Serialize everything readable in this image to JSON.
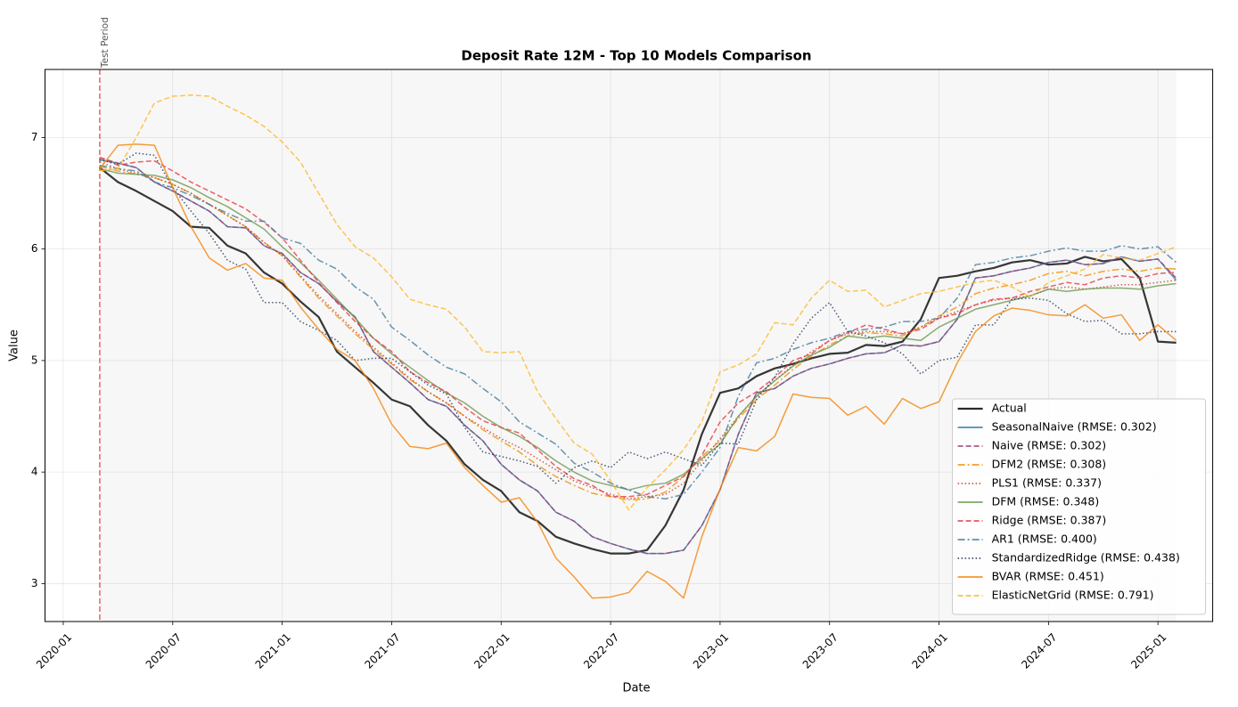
{
  "chart_data": {
    "type": "line",
    "title": "Deposit Rate 12M - Top 10 Models Comparison",
    "x_label": "Date",
    "y_label": "Value",
    "annotation": "Test Period",
    "vline": "2020-03",
    "shaded_span": [
      "2020-03",
      "2025-02"
    ],
    "legend": "lower right",
    "grid": true,
    "xlim": [
      "2019-12",
      "2025-04"
    ],
    "xticks": [
      "2020-01",
      "2020-07",
      "2021-01",
      "2021-07",
      "2022-01",
      "2022-07",
      "2023-01",
      "2023-07",
      "2024-01",
      "2024-07",
      "2025-01"
    ],
    "ylim": [
      2.66,
      7.61
    ],
    "yticks": [
      3,
      4,
      5,
      6,
      7
    ],
    "x": [
      "2020-03",
      "2020-04",
      "2020-05",
      "2020-06",
      "2020-07",
      "2020-08",
      "2020-09",
      "2020-10",
      "2020-11",
      "2020-12",
      "2021-01",
      "2021-02",
      "2021-03",
      "2021-04",
      "2021-05",
      "2021-06",
      "2021-07",
      "2021-08",
      "2021-09",
      "2021-10",
      "2021-11",
      "2021-12",
      "2022-01",
      "2022-02",
      "2022-03",
      "2022-04",
      "2022-05",
      "2022-06",
      "2022-07",
      "2022-08",
      "2022-09",
      "2022-10",
      "2022-11",
      "2022-12",
      "2023-01",
      "2023-02",
      "2023-03",
      "2023-04",
      "2023-05",
      "2023-06",
      "2023-07",
      "2023-08",
      "2023-09",
      "2023-10",
      "2023-11",
      "2023-12",
      "2024-01",
      "2024-02",
      "2024-03",
      "2024-04",
      "2024-05",
      "2024-06",
      "2024-07",
      "2024-08",
      "2024-09",
      "2024-10",
      "2024-11",
      "2024-12",
      "2025-01",
      "2025-02"
    ],
    "series": [
      {
        "name": "Actual",
        "color": "#2b2b2b",
        "style": "solid",
        "linewidth": 2.2,
        "values": [
          6.73,
          6.6,
          6.52,
          6.43,
          6.34,
          6.2,
          6.19,
          6.03,
          5.96,
          5.79,
          5.69,
          5.53,
          5.39,
          5.08,
          4.94,
          4.8,
          4.65,
          4.59,
          4.42,
          4.28,
          4.07,
          3.93,
          3.83,
          3.64,
          3.56,
          3.42,
          3.36,
          3.31,
          3.27,
          3.27,
          3.3,
          3.52,
          3.84,
          4.34,
          4.71,
          4.75,
          4.86,
          4.93,
          4.97,
          5.02,
          5.06,
          5.07,
          5.14,
          5.13,
          5.17,
          5.37,
          5.74,
          5.76,
          5.8,
          5.83,
          5.88,
          5.9,
          5.86,
          5.87,
          5.93,
          5.89,
          5.91,
          5.74,
          5.17,
          5.16
        ]
      },
      {
        "name": "SeasonalNaive (RMSE: 0.302)",
        "color": "#2e7ca8",
        "style": "solid",
        "values": [
          6.8,
          6.77,
          6.73,
          6.6,
          6.52,
          6.43,
          6.34,
          6.2,
          6.19,
          6.03,
          5.96,
          5.79,
          5.69,
          5.53,
          5.39,
          5.08,
          4.94,
          4.8,
          4.65,
          4.59,
          4.42,
          4.28,
          4.07,
          3.93,
          3.83,
          3.64,
          3.56,
          3.42,
          3.36,
          3.31,
          3.27,
          3.27,
          3.3,
          3.52,
          3.84,
          4.34,
          4.71,
          4.75,
          4.86,
          4.93,
          4.97,
          5.02,
          5.06,
          5.07,
          5.14,
          5.13,
          5.17,
          5.37,
          5.74,
          5.76,
          5.8,
          5.83,
          5.88,
          5.9,
          5.86,
          5.87,
          5.93,
          5.89,
          5.91,
          5.72
        ]
      },
      {
        "name": "Naive (RMSE: 0.302)",
        "color": "#a23b72",
        "style": "dashed",
        "values": [
          6.82,
          6.77,
          6.73,
          6.6,
          6.52,
          6.43,
          6.34,
          6.2,
          6.19,
          6.03,
          5.96,
          5.79,
          5.69,
          5.53,
          5.39,
          5.08,
          4.94,
          4.8,
          4.65,
          4.59,
          4.42,
          4.28,
          4.07,
          3.93,
          3.83,
          3.64,
          3.56,
          3.42,
          3.36,
          3.31,
          3.27,
          3.27,
          3.3,
          3.52,
          3.84,
          4.34,
          4.71,
          4.75,
          4.86,
          4.93,
          4.97,
          5.02,
          5.06,
          5.07,
          5.14,
          5.13,
          5.17,
          5.37,
          5.74,
          5.76,
          5.8,
          5.83,
          5.88,
          5.9,
          5.86,
          5.87,
          5.93,
          5.89,
          5.91,
          5.74
        ]
      },
      {
        "name": "DFM2 (RMSE: 0.308)",
        "color": "#f18f01",
        "style": "dashdot",
        "values": [
          6.74,
          6.7,
          6.67,
          6.64,
          6.58,
          6.5,
          6.4,
          6.3,
          6.2,
          6.06,
          5.94,
          5.75,
          5.56,
          5.4,
          5.24,
          5.1,
          4.97,
          4.83,
          4.72,
          4.62,
          4.5,
          4.38,
          4.28,
          4.18,
          4.06,
          3.96,
          3.88,
          3.81,
          3.78,
          3.75,
          3.76,
          3.82,
          3.96,
          4.14,
          4.28,
          4.48,
          4.65,
          4.78,
          4.92,
          5.04,
          5.14,
          5.22,
          5.25,
          5.24,
          5.22,
          5.3,
          5.4,
          5.48,
          5.6,
          5.65,
          5.68,
          5.72,
          5.78,
          5.8,
          5.76,
          5.8,
          5.82,
          5.8,
          5.83,
          5.82
        ]
      },
      {
        "name": "PLS1 (RMSE: 0.337)",
        "color": "#c73e1d",
        "style": "dotted",
        "values": [
          6.78,
          6.72,
          6.68,
          6.64,
          6.58,
          6.5,
          6.4,
          6.3,
          6.2,
          6.06,
          5.94,
          5.76,
          5.58,
          5.42,
          5.26,
          5.12,
          4.98,
          4.84,
          4.72,
          4.62,
          4.5,
          4.4,
          4.3,
          4.22,
          4.12,
          4.02,
          3.92,
          3.86,
          3.8,
          3.76,
          3.78,
          3.8,
          3.9,
          4.1,
          4.3,
          4.5,
          4.68,
          4.82,
          4.96,
          5.08,
          5.18,
          5.24,
          5.26,
          5.26,
          5.24,
          5.3,
          5.38,
          5.44,
          5.5,
          5.54,
          5.56,
          5.58,
          5.64,
          5.66,
          5.64,
          5.66,
          5.68,
          5.68,
          5.7,
          5.72
        ]
      },
      {
        "name": "DFM (RMSE: 0.348)",
        "color": "#6a994e",
        "style": "solid",
        "values": [
          6.72,
          6.68,
          6.67,
          6.66,
          6.62,
          6.55,
          6.46,
          6.38,
          6.28,
          6.18,
          6.02,
          5.88,
          5.72,
          5.55,
          5.38,
          5.2,
          5.06,
          4.94,
          4.82,
          4.71,
          4.62,
          4.5,
          4.4,
          4.32,
          4.22,
          4.1,
          4.0,
          3.92,
          3.88,
          3.84,
          3.88,
          3.9,
          3.98,
          4.12,
          4.25,
          4.5,
          4.68,
          4.82,
          4.95,
          5.05,
          5.12,
          5.22,
          5.2,
          5.22,
          5.2,
          5.18,
          5.3,
          5.38,
          5.46,
          5.5,
          5.54,
          5.58,
          5.64,
          5.62,
          5.64,
          5.65,
          5.65,
          5.64,
          5.67,
          5.69
        ]
      },
      {
        "name": "Ridge (RMSE: 0.387)",
        "color": "#e63946",
        "style": "dashed",
        "values": [
          6.82,
          6.75,
          6.78,
          6.79,
          6.7,
          6.6,
          6.52,
          6.44,
          6.36,
          6.24,
          6.1,
          5.9,
          5.7,
          5.52,
          5.35,
          5.2,
          5.08,
          4.9,
          4.8,
          4.72,
          4.58,
          4.46,
          4.4,
          4.35,
          4.2,
          4.05,
          3.94,
          3.88,
          3.78,
          3.78,
          3.8,
          3.88,
          3.96,
          4.15,
          4.45,
          4.62,
          4.72,
          4.85,
          5.0,
          5.06,
          5.18,
          5.25,
          5.32,
          5.28,
          5.24,
          5.28,
          5.38,
          5.42,
          5.5,
          5.55,
          5.56,
          5.62,
          5.66,
          5.7,
          5.68,
          5.74,
          5.76,
          5.74,
          5.78,
          5.79
        ]
      },
      {
        "name": "AR1 (RMSE: 0.400)",
        "color": "#457b9d",
        "style": "dashdot",
        "values": [
          6.75,
          6.72,
          6.7,
          6.6,
          6.55,
          6.48,
          6.4,
          6.32,
          6.25,
          6.25,
          6.1,
          6.05,
          5.9,
          5.82,
          5.66,
          5.55,
          5.3,
          5.18,
          5.05,
          4.94,
          4.88,
          4.75,
          4.63,
          4.45,
          4.35,
          4.25,
          4.08,
          4.0,
          3.9,
          3.84,
          3.78,
          3.76,
          3.8,
          4.0,
          4.22,
          4.68,
          4.98,
          5.02,
          5.1,
          5.16,
          5.2,
          5.26,
          5.28,
          5.3,
          5.35,
          5.35,
          5.38,
          5.56,
          5.86,
          5.88,
          5.92,
          5.94,
          5.98,
          6.01,
          5.98,
          5.98,
          6.03,
          6.0,
          6.02,
          5.88
        ]
      },
      {
        "name": "StandardizedRidge (RMSE: 0.438)",
        "color": "#1d3557",
        "style": "dotted",
        "values": [
          6.8,
          6.76,
          6.86,
          6.84,
          6.55,
          6.34,
          6.14,
          5.9,
          5.82,
          5.52,
          5.52,
          5.35,
          5.27,
          5.18,
          5.0,
          5.02,
          5.02,
          4.9,
          4.78,
          4.7,
          4.4,
          4.18,
          4.14,
          4.1,
          4.05,
          3.9,
          4.04,
          4.1,
          4.04,
          4.18,
          4.12,
          4.18,
          4.12,
          4.06,
          4.26,
          4.25,
          4.65,
          4.85,
          5.15,
          5.38,
          5.52,
          5.26,
          5.22,
          5.16,
          5.06,
          4.88,
          5.0,
          5.03,
          5.32,
          5.32,
          5.55,
          5.56,
          5.54,
          5.42,
          5.35,
          5.36,
          5.24,
          5.24,
          5.26,
          5.26
        ]
      },
      {
        "name": "BVAR (RMSE: 0.451)",
        "color": "#f4840c",
        "style": "solid",
        "values": [
          6.72,
          6.93,
          6.94,
          6.93,
          6.55,
          6.2,
          5.92,
          5.81,
          5.87,
          5.74,
          5.72,
          5.48,
          5.28,
          5.1,
          5.0,
          4.75,
          4.43,
          4.23,
          4.21,
          4.26,
          4.04,
          3.88,
          3.73,
          3.77,
          3.55,
          3.23,
          3.06,
          2.87,
          2.88,
          2.92,
          3.11,
          3.02,
          2.87,
          3.42,
          3.85,
          4.22,
          4.19,
          4.32,
          4.7,
          4.67,
          4.66,
          4.51,
          4.59,
          4.43,
          4.66,
          4.57,
          4.63,
          4.98,
          5.26,
          5.4,
          5.47,
          5.45,
          5.41,
          5.4,
          5.5,
          5.38,
          5.41,
          5.18,
          5.32,
          5.18
        ]
      },
      {
        "name": "ElasticNetGrid (RMSE: 0.791)",
        "color": "#ffb627",
        "style": "dashed",
        "values": [
          6.7,
          6.72,
          7.0,
          7.31,
          7.37,
          7.38,
          7.37,
          7.28,
          7.2,
          7.1,
          6.96,
          6.78,
          6.5,
          6.22,
          6.02,
          5.92,
          5.75,
          5.55,
          5.5,
          5.46,
          5.3,
          5.08,
          5.07,
          5.08,
          4.72,
          4.48,
          4.26,
          4.16,
          3.92,
          3.66,
          3.86,
          4.02,
          4.2,
          4.45,
          4.9,
          4.96,
          5.06,
          5.34,
          5.32,
          5.56,
          5.72,
          5.62,
          5.63,
          5.48,
          5.54,
          5.6,
          5.62,
          5.66,
          5.7,
          5.72,
          5.66,
          5.57,
          5.7,
          5.76,
          5.82,
          5.95,
          5.92,
          5.9,
          5.96,
          6.02
        ]
      }
    ]
  }
}
